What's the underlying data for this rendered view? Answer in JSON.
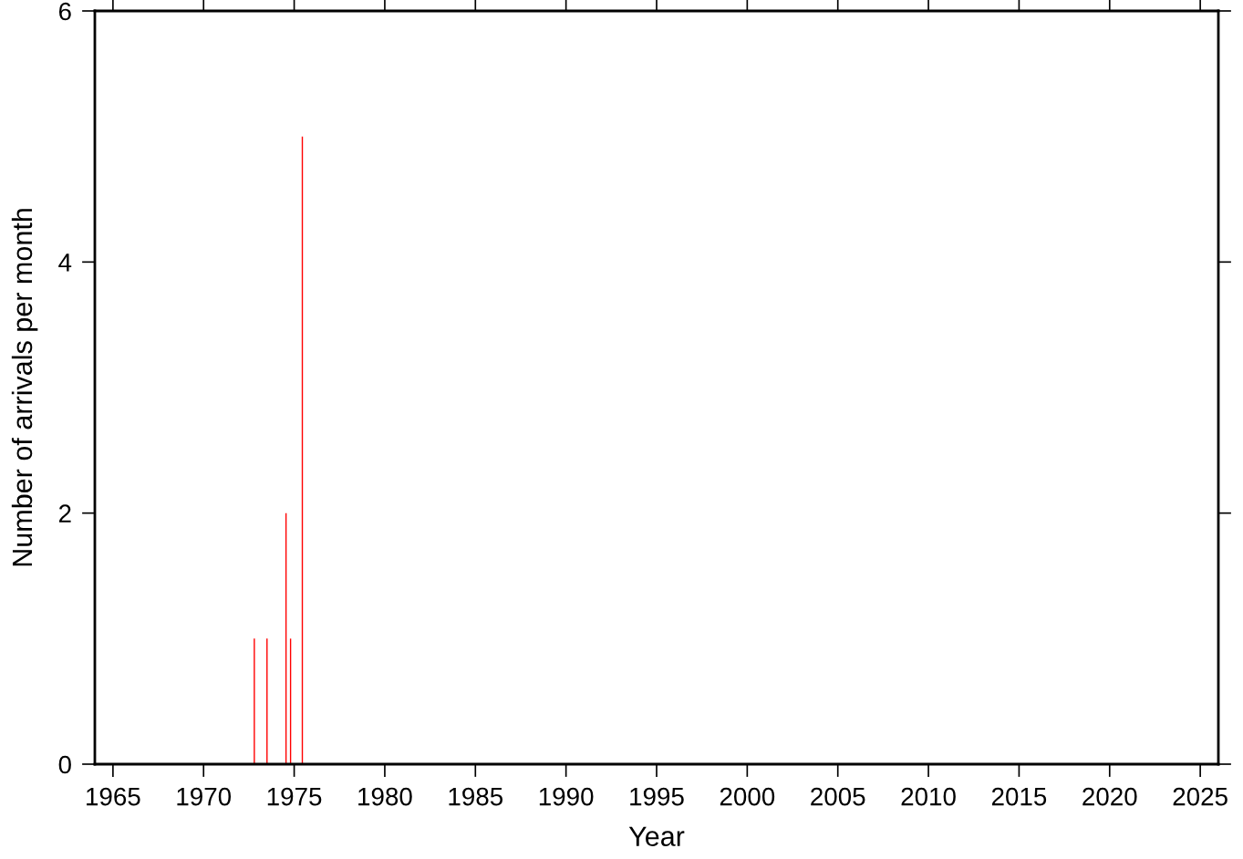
{
  "chart_data": {
    "type": "bar",
    "xlabel": "Year",
    "ylabel": "Number of arrivals per month",
    "x": [
      1972.8,
      1973.5,
      1974.55,
      1974.8,
      1975.45
    ],
    "values": [
      1,
      1,
      2,
      1,
      5
    ],
    "color": "#ff0000",
    "xlim": [
      1964,
      2026
    ],
    "xticks": [
      1965,
      1970,
      1975,
      1980,
      1985,
      1990,
      1995,
      2000,
      2005,
      2010,
      2015,
      2020,
      2025
    ],
    "ylim": [
      0,
      6
    ],
    "yticks": [
      0,
      2,
      4,
      6
    ],
    "grid": false,
    "legend": false
  }
}
